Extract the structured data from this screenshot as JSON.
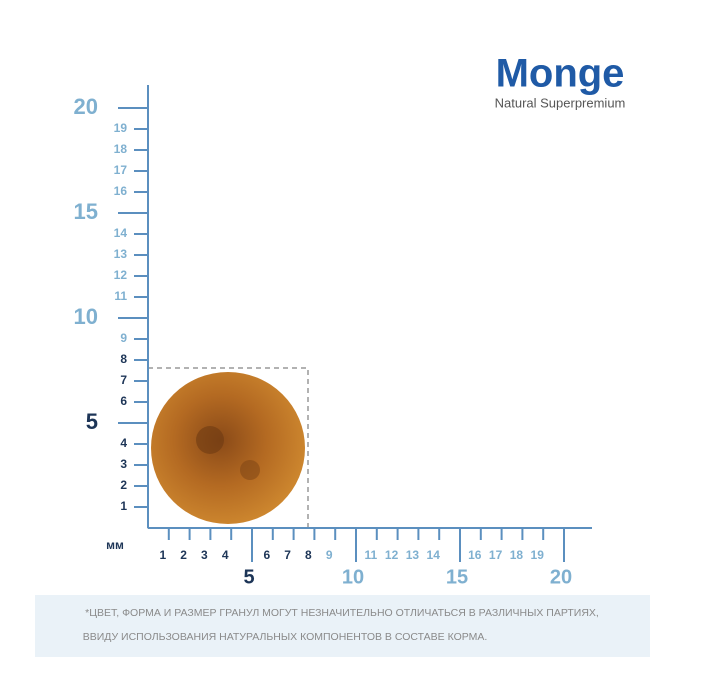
{
  "brand": {
    "name": "Monge",
    "tagline": "Natural Superpremium"
  },
  "ruler": {
    "unit": "мм",
    "vertical": {
      "minor_inside": [
        1,
        2,
        3,
        4,
        6,
        7,
        8
      ],
      "minor_outside": [
        9,
        11,
        12,
        13,
        14,
        16,
        17,
        18,
        19
      ],
      "major_inside": [
        5
      ],
      "major_outside": [
        10,
        15,
        20
      ]
    },
    "horizontal": {
      "minor_inside": [
        1,
        2,
        3,
        4,
        6,
        7,
        8
      ],
      "minor_outside": [
        9,
        11,
        12,
        13,
        14,
        16,
        17,
        18,
        19
      ],
      "major_inside": [
        5
      ],
      "major_outside": [
        10,
        15,
        20
      ]
    }
  },
  "note": {
    "lines": [
      "*ЦВЕТ, ФОРМА И РАЗМЕР ГРАНУЛ МОГУТ НЕЗНАЧИТЕЛЬНО ОТЛИЧАТЬСЯ В РАЗЛИЧНЫХ ПАРТИЯХ,",
      "ВВИДУ ИСПОЛЬЗОВАНИЯ НАТУРАЛЬНЫХ КОМПОНЕНТОВ В СОСТАВЕ КОРМА."
    ]
  }
}
